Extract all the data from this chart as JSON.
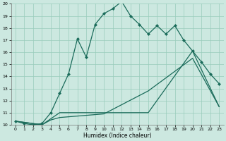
{
  "xlabel": "Humidex (Indice chaleur)",
  "xlim": [
    -0.5,
    23.5
  ],
  "ylim": [
    10,
    20
  ],
  "xticks": [
    0,
    1,
    2,
    3,
    4,
    5,
    6,
    7,
    8,
    9,
    10,
    11,
    12,
    13,
    14,
    15,
    16,
    17,
    18,
    19,
    20,
    21,
    22,
    23
  ],
  "yticks": [
    10,
    11,
    12,
    13,
    14,
    15,
    16,
    17,
    18,
    19,
    20
  ],
  "background_color": "#cce8e0",
  "grid_color": "#99ccbb",
  "line_color": "#1a6b5a",
  "curve1_x": [
    0,
    1,
    2,
    3,
    4,
    5,
    6,
    7,
    8,
    9,
    10,
    11,
    12,
    13,
    14,
    15,
    16,
    17,
    18,
    19,
    20,
    21,
    22,
    23
  ],
  "curve1_y": [
    10.3,
    10.1,
    10.0,
    10.1,
    11.0,
    12.6,
    14.2,
    17.1,
    15.6,
    18.3,
    19.2,
    19.6,
    20.2,
    19.0,
    18.3,
    17.5,
    18.2,
    17.5,
    18.2,
    17.0,
    16.1,
    15.2,
    14.2,
    13.4
  ],
  "curve2_x": [
    0,
    3,
    4,
    5,
    10,
    15,
    20,
    23
  ],
  "curve2_y": [
    10.3,
    10.0,
    10.5,
    11.0,
    11.0,
    11.0,
    16.1,
    11.5
  ],
  "curve3_x": [
    0,
    3,
    4,
    5,
    10,
    15,
    20,
    23
  ],
  "curve3_y": [
    10.3,
    10.0,
    10.4,
    10.6,
    10.9,
    12.8,
    15.5,
    11.5
  ],
  "marker": "D",
  "marker_size": 2.5,
  "line_width": 0.9
}
